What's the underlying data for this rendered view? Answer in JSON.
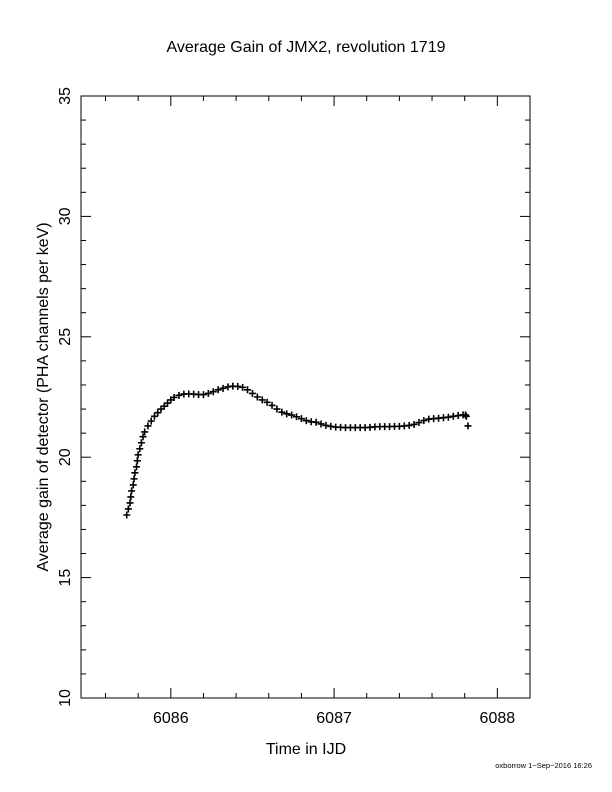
{
  "chart_data": {
    "type": "scatter",
    "title": "Average Gain of JMX2, revolution 1719",
    "xlabel": "Time in IJD",
    "ylabel": "Average gain of detector (PHA channels per keV)",
    "xlim": [
      6085.45,
      6088.2
    ],
    "ylim": [
      10,
      35
    ],
    "xticks": [
      6086,
      6087,
      6088
    ],
    "yticks": [
      10,
      15,
      20,
      25,
      30,
      35
    ],
    "marker": "plus",
    "marker_color": "#000000",
    "grid": false,
    "series": [
      {
        "points": [
          [
            6085.73,
            17.6
          ],
          [
            6085.74,
            17.85
          ],
          [
            6085.75,
            18.1
          ],
          [
            6085.755,
            18.35
          ],
          [
            6085.76,
            18.6
          ],
          [
            6085.77,
            18.85
          ],
          [
            6085.775,
            19.1
          ],
          [
            6085.78,
            19.35
          ],
          [
            6085.79,
            19.6
          ],
          [
            6085.795,
            19.85
          ],
          [
            6085.8,
            20.1
          ],
          [
            6085.81,
            20.35
          ],
          [
            6085.82,
            20.6
          ],
          [
            6085.83,
            20.85
          ],
          [
            6085.84,
            21.05
          ],
          [
            6085.86,
            21.3
          ],
          [
            6085.88,
            21.5
          ],
          [
            6085.9,
            21.7
          ],
          [
            6085.92,
            21.85
          ],
          [
            6085.94,
            22.0
          ],
          [
            6085.96,
            22.12
          ],
          [
            6085.98,
            22.25
          ],
          [
            6086.0,
            22.38
          ],
          [
            6086.02,
            22.48
          ],
          [
            6086.05,
            22.57
          ],
          [
            6086.08,
            22.62
          ],
          [
            6086.11,
            22.63
          ],
          [
            6086.14,
            22.62
          ],
          [
            6086.17,
            22.6
          ],
          [
            6086.2,
            22.6
          ],
          [
            6086.23,
            22.65
          ],
          [
            6086.26,
            22.72
          ],
          [
            6086.29,
            22.8
          ],
          [
            6086.32,
            22.86
          ],
          [
            6086.35,
            22.92
          ],
          [
            6086.38,
            22.95
          ],
          [
            6086.41,
            22.94
          ],
          [
            6086.44,
            22.9
          ],
          [
            6086.47,
            22.8
          ],
          [
            6086.5,
            22.65
          ],
          [
            6086.53,
            22.5
          ],
          [
            6086.56,
            22.38
          ],
          [
            6086.59,
            22.28
          ],
          [
            6086.62,
            22.15
          ],
          [
            6086.65,
            22.0
          ],
          [
            6086.68,
            21.87
          ],
          [
            6086.71,
            21.8
          ],
          [
            6086.74,
            21.75
          ],
          [
            6086.77,
            21.68
          ],
          [
            6086.8,
            21.6
          ],
          [
            6086.83,
            21.52
          ],
          [
            6086.86,
            21.47
          ],
          [
            6086.89,
            21.45
          ],
          [
            6086.92,
            21.38
          ],
          [
            6086.95,
            21.32
          ],
          [
            6086.98,
            21.28
          ],
          [
            6087.01,
            21.25
          ],
          [
            6087.04,
            21.24
          ],
          [
            6087.07,
            21.23
          ],
          [
            6087.1,
            21.23
          ],
          [
            6087.13,
            21.23
          ],
          [
            6087.16,
            21.23
          ],
          [
            6087.19,
            21.23
          ],
          [
            6087.22,
            21.24
          ],
          [
            6087.25,
            21.26
          ],
          [
            6087.28,
            21.27
          ],
          [
            6087.31,
            21.27
          ],
          [
            6087.34,
            21.27
          ],
          [
            6087.37,
            21.28
          ],
          [
            6087.4,
            21.28
          ],
          [
            6087.43,
            21.3
          ],
          [
            6087.46,
            21.32
          ],
          [
            6087.49,
            21.36
          ],
          [
            6087.52,
            21.44
          ],
          [
            6087.55,
            21.52
          ],
          [
            6087.58,
            21.58
          ],
          [
            6087.61,
            21.6
          ],
          [
            6087.64,
            21.62
          ],
          [
            6087.67,
            21.64
          ],
          [
            6087.7,
            21.66
          ],
          [
            6087.73,
            21.7
          ],
          [
            6087.76,
            21.73
          ],
          [
            6087.79,
            21.76
          ],
          [
            6087.805,
            21.75
          ],
          [
            6087.81,
            21.7
          ],
          [
            6087.82,
            21.3
          ]
        ]
      }
    ]
  },
  "footer": {
    "stamp": "oxborrow  1−Sep−2016 16:26"
  }
}
